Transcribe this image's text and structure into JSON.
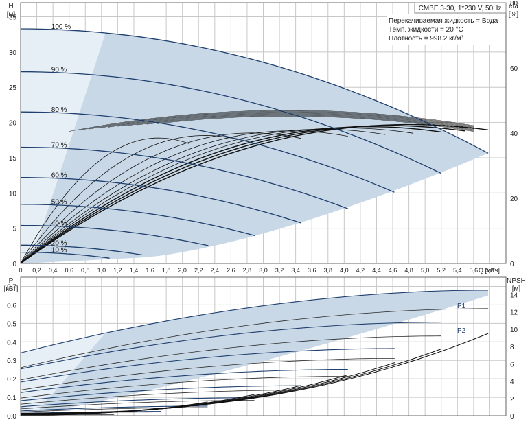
{
  "title": "CMBE 3-30, 1*230 V, 50Hz",
  "info": {
    "lines": [
      "Перекачиваемая жидкость = Вода",
      "Темп. жидкости = 20 °C",
      "Плотность = 998.2 кг/м³"
    ]
  },
  "colors": {
    "curve": "#1f3f6e",
    "band": "#c9d8e6",
    "band_light": "#e6eef6",
    "eff": "#111111",
    "grid": "#c8c8c8"
  },
  "chart_data": [
    {
      "type": "line",
      "name": "H",
      "ylabel": "H",
      "yunit": "[м]",
      "xlabel": "Q [м³/ч]",
      "xlim": [
        0,
        6.0
      ],
      "ylim": [
        0,
        37
      ],
      "x_ticks": [
        0,
        0.2,
        0.4,
        0.6,
        0.8,
        1.0,
        1.2,
        1.4,
        1.6,
        1.8,
        2.0,
        2.2,
        2.4,
        2.6,
        2.8,
        3.0,
        3.2,
        3.4,
        3.6,
        3.8,
        4.0,
        4.2,
        4.4,
        4.6,
        4.8,
        5.0,
        5.2,
        5.4,
        5.6,
        5.8
      ],
      "x_tick_labels": [
        "0",
        "0,2",
        "0,4",
        "0,6",
        "0,8",
        "1,0",
        "1,2",
        "1,4",
        "1,6",
        "1,8",
        "2,0",
        "2,2",
        "2,4",
        "2,6",
        "2,8",
        "3,0",
        "3,2",
        "3,4",
        "3,6",
        "3,8",
        "4,0",
        "4,2",
        "4,4",
        "4,6",
        "4,8",
        "5,0",
        "5,2",
        "5,4",
        "5,6",
        "5,8"
      ],
      "y_ticks": [
        0,
        5,
        10,
        15,
        20,
        25,
        30,
        35
      ],
      "y2label": "eta",
      "y2unit": "[%]",
      "y2lim": [
        0,
        80
      ],
      "y2_ticks": [
        0,
        20,
        40,
        60,
        80
      ],
      "speeds": [
        {
          "label": "100 %",
          "h0": 33.3,
          "qmax": 5.78
        },
        {
          "label": "90 %",
          "h0": 27.2,
          "qmax": 5.2
        },
        {
          "label": "80 %",
          "h0": 21.5,
          "qmax": 4.62
        },
        {
          "label": "70 %",
          "h0": 16.5,
          "qmax": 4.05
        },
        {
          "label": "60 %",
          "h0": 12.2,
          "qmax": 3.47
        },
        {
          "label": "50 %",
          "h0": 8.4,
          "qmax": 2.9
        },
        {
          "label": "40 %",
          "h0": 5.4,
          "qmax": 2.32
        },
        {
          "label": "20 %",
          "h0": 2.6,
          "qmax": 1.5
        },
        {
          "label": "10 %",
          "h0": 1.6,
          "qmax": 1.1
        }
      ],
      "eta_max": 47
    },
    {
      "type": "line",
      "name": "P / NPSH",
      "ylabel": "P",
      "yunit": "[кВт]",
      "xlim": [
        0,
        6.0
      ],
      "ylim": [
        0,
        0.75
      ],
      "y_ticks": [
        0.0,
        0.1,
        0.2,
        0.3,
        0.4,
        0.5,
        0.6,
        0.7
      ],
      "y_tick_labels": [
        "0.0",
        "0.1",
        "0.2",
        "0.3",
        "0.4",
        "0.5",
        "0.6",
        "0.7"
      ],
      "y2label": "NPSH",
      "y2unit": "[м]",
      "y2lim": [
        0,
        16
      ],
      "y2_ticks": [
        0,
        2,
        4,
        6,
        8,
        10,
        12,
        14
      ],
      "series": [
        {
          "name": "P1",
          "p_start": 0.34,
          "p_end": 0.68,
          "qmax": 5.78
        },
        {
          "name": "P2",
          "p_start": 0.26,
          "p_end": 0.58,
          "qmax": 5.78
        }
      ],
      "npsh_end": 9.2
    }
  ]
}
